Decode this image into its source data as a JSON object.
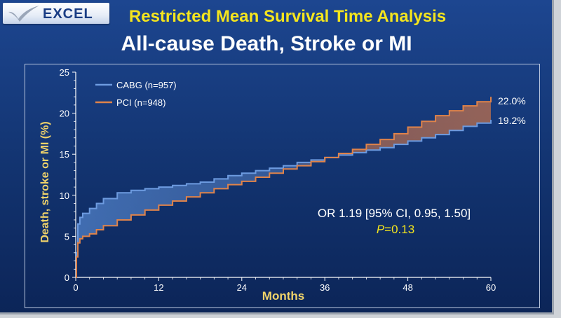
{
  "header": {
    "logo_text": "EXCEL",
    "title": "Restricted Mean Survival Time Analysis",
    "subtitle": "All-cause Death, Stroke or MI"
  },
  "colors": {
    "background": "#12336f",
    "title": "#f4e51d",
    "axis_label": "#f0d36a",
    "cabg": "#6d9be0",
    "pci": "#e0834a",
    "text": "#ffffff"
  },
  "chart_data": {
    "type": "line",
    "xlabel": "Months",
    "ylabel": "Death, stroke or MI (%)",
    "xlim": [
      0,
      60
    ],
    "ylim": [
      0,
      25
    ],
    "x_ticks": [
      "0",
      "12",
      "24",
      "36",
      "48",
      "60"
    ],
    "y_ticks": [
      "0",
      "5",
      "10",
      "15",
      "20",
      "25"
    ],
    "legend_position": "top-left",
    "grid": false,
    "series": [
      {
        "name": "CABG (n=957)",
        "color": "#6d9be0",
        "end_label": "19.2%",
        "points": [
          [
            0,
            0
          ],
          [
            0.1,
            3
          ],
          [
            0.3,
            6.5
          ],
          [
            0.6,
            7.3
          ],
          [
            1,
            7.8
          ],
          [
            2,
            8.4
          ],
          [
            3,
            9
          ],
          [
            4,
            9.6
          ],
          [
            6,
            10.3
          ],
          [
            8,
            10.6
          ],
          [
            10,
            10.8
          ],
          [
            12,
            11
          ],
          [
            14,
            11.2
          ],
          [
            16,
            11.4
          ],
          [
            18,
            11.6
          ],
          [
            20,
            12
          ],
          [
            22,
            12.4
          ],
          [
            24,
            12.7
          ],
          [
            26,
            13
          ],
          [
            28,
            13.3
          ],
          [
            30,
            13.6
          ],
          [
            32,
            14
          ],
          [
            34,
            14.3
          ],
          [
            36,
            14.6
          ],
          [
            38,
            14.9
          ],
          [
            40,
            15.2
          ],
          [
            42,
            15.5
          ],
          [
            44,
            15.8
          ],
          [
            46,
            16.2
          ],
          [
            48,
            16.6
          ],
          [
            50,
            17
          ],
          [
            52,
            17.4
          ],
          [
            54,
            17.9
          ],
          [
            56,
            18.4
          ],
          [
            58,
            18.8
          ],
          [
            60,
            19.2
          ]
        ]
      },
      {
        "name": "PCI (n=948)",
        "color": "#e0834a",
        "end_label": "22.0%",
        "points": [
          [
            0,
            0
          ],
          [
            0.1,
            2.5
          ],
          [
            0.3,
            4.2
          ],
          [
            0.6,
            4.7
          ],
          [
            1,
            5
          ],
          [
            2,
            5.3
          ],
          [
            3,
            5.8
          ],
          [
            4,
            6.3
          ],
          [
            6,
            7
          ],
          [
            8,
            7.6
          ],
          [
            10,
            8.2
          ],
          [
            12,
            8.8
          ],
          [
            14,
            9.3
          ],
          [
            16,
            9.8
          ],
          [
            18,
            10.3
          ],
          [
            20,
            10.8
          ],
          [
            22,
            11.3
          ],
          [
            24,
            11.7
          ],
          [
            26,
            12.2
          ],
          [
            28,
            12.7
          ],
          [
            30,
            13.2
          ],
          [
            32,
            13.6
          ],
          [
            34,
            14.1
          ],
          [
            36,
            14.6
          ],
          [
            38,
            15.1
          ],
          [
            40,
            15.6
          ],
          [
            42,
            16.2
          ],
          [
            44,
            16.8
          ],
          [
            46,
            17.5
          ],
          [
            48,
            18.3
          ],
          [
            50,
            19
          ],
          [
            52,
            19.7
          ],
          [
            54,
            20.3
          ],
          [
            56,
            20.9
          ],
          [
            58,
            21.4
          ],
          [
            60,
            22
          ]
        ]
      }
    ],
    "annotations": {
      "or_text": "OR 1.19 [95% CI, 0.95, 1.50]",
      "p_label": "P",
      "p_value": "=0.13"
    }
  }
}
